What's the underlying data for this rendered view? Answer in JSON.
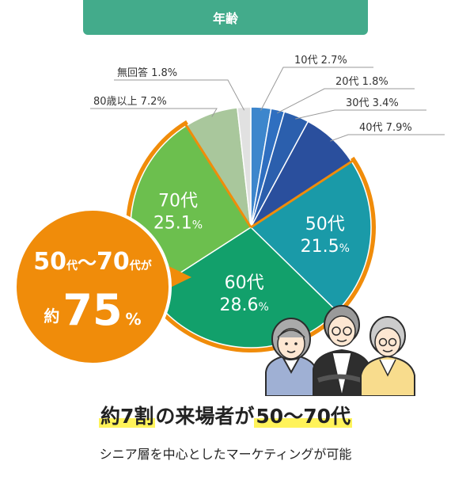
{
  "header": {
    "title": "年齢"
  },
  "chart_data": {
    "type": "pie",
    "slices": [
      {
        "label": "10代",
        "value": 2.7,
        "color": "#3d86cc"
      },
      {
        "label": "20代",
        "value": 1.8,
        "color": "#2f6fc0"
      },
      {
        "label": "30代",
        "value": 3.4,
        "color": "#2b5fad"
      },
      {
        "label": "40代",
        "value": 7.9,
        "color": "#2a4f9d"
      },
      {
        "label": "50代",
        "value": 21.5,
        "color": "#1a9aa8"
      },
      {
        "label": "60代",
        "value": 28.6,
        "color": "#12a06b"
      },
      {
        "label": "70代",
        "value": 25.1,
        "color": "#6cbf4e"
      },
      {
        "label": "80歳以上",
        "value": 7.2,
        "color": "#a9c79c"
      },
      {
        "label": "無回答",
        "value": 1.8,
        "color": "#e1e1e1"
      }
    ],
    "highlight_color": "#f08c0a"
  },
  "callout": {
    "line1_a": "50",
    "line1_b": "代",
    "line1_c": "〜",
    "line1_d": "70",
    "line1_e": "代",
    "line1_f": "が",
    "line2_a": "約",
    "line2_b": "75",
    "line2_c": "%"
  },
  "headline": {
    "part1": "約7割",
    "part2": "の来場者が",
    "part3": "50〜70代"
  },
  "subtext": "シニア層を中心としたマーケティングが可能"
}
